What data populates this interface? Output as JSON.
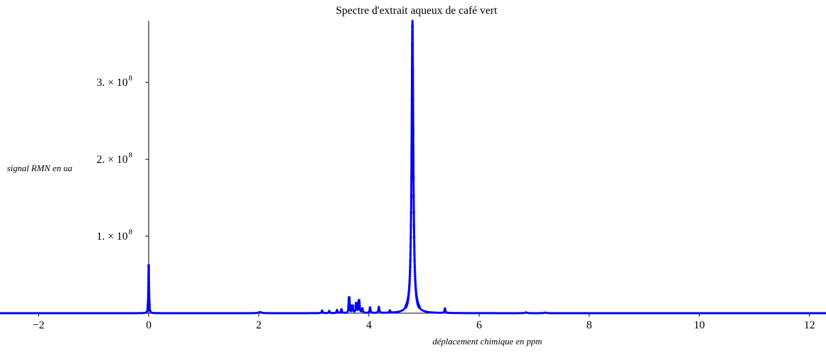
{
  "chart_data": {
    "type": "scatter",
    "title": "Spectre d'extrait aqueux de café vert",
    "xlabel": "déplacement chimique en ppm",
    "ylabel": "signal RMN en ua",
    "xlim": [
      -2.7,
      12.3
    ],
    "ylim": [
      0,
      380000000
    ],
    "x_ticks": [
      -2,
      0,
      2,
      4,
      6,
      8,
      10,
      12
    ],
    "y_ticks": [
      {
        "value": 100000000,
        "label": "1. × 10",
        "exp": "8"
      },
      {
        "value": 200000000,
        "label": "2. × 10",
        "exp": "8"
      },
      {
        "value": 300000000,
        "label": "3. × 10",
        "exp": "8"
      }
    ],
    "series": [
      {
        "color": "#0000ff",
        "marker": "cross",
        "peaks": [
          {
            "x": 0.0,
            "height": 62000000,
            "width": 0.006
          },
          {
            "x": 2.02,
            "height": 1500000,
            "width": 0.03
          },
          {
            "x": 3.15,
            "height": 3500000,
            "width": 0.01
          },
          {
            "x": 3.28,
            "height": 3000000,
            "width": 0.01
          },
          {
            "x": 3.42,
            "height": 4000000,
            "width": 0.01
          },
          {
            "x": 3.5,
            "height": 5000000,
            "width": 0.01
          },
          {
            "x": 3.64,
            "height": 20000000,
            "width": 0.008
          },
          {
            "x": 3.7,
            "height": 9000000,
            "width": 0.01
          },
          {
            "x": 3.77,
            "height": 12000000,
            "width": 0.01
          },
          {
            "x": 3.82,
            "height": 16000000,
            "width": 0.01
          },
          {
            "x": 3.88,
            "height": 6000000,
            "width": 0.01
          },
          {
            "x": 4.02,
            "height": 7000000,
            "width": 0.01
          },
          {
            "x": 4.18,
            "height": 8000000,
            "width": 0.01
          },
          {
            "x": 4.38,
            "height": 3000000,
            "width": 0.01
          },
          {
            "x": 4.79,
            "height": 382000000,
            "width": 0.018
          },
          {
            "x": 5.38,
            "height": 6000000,
            "width": 0.01
          },
          {
            "x": 6.85,
            "height": 1000000,
            "width": 0.02
          },
          {
            "x": 7.2,
            "height": 800000,
            "width": 0.02
          }
        ]
      }
    ],
    "colors": {
      "series": "#0000ff",
      "axis": "#000000"
    }
  }
}
